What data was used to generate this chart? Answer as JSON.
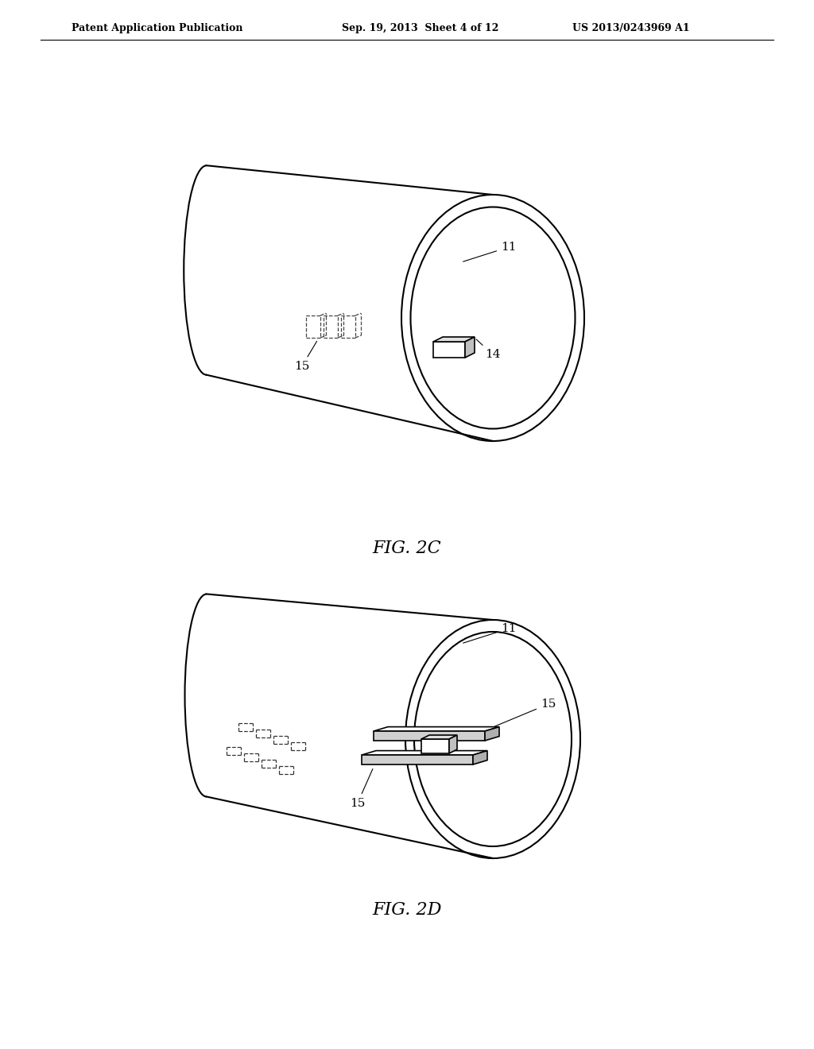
{
  "background_color": "#ffffff",
  "line_color": "#000000",
  "dashed_color": "#555555",
  "header_left": "Patent Application Publication",
  "header_center": "Sep. 19, 2013  Sheet 4 of 12",
  "header_right": "US 2013/0243969 A1",
  "fig2c_label": "FIG. 2C",
  "fig2d_label": "FIG. 2D",
  "label_11": "11",
  "label_14": "14",
  "label_15": "15"
}
